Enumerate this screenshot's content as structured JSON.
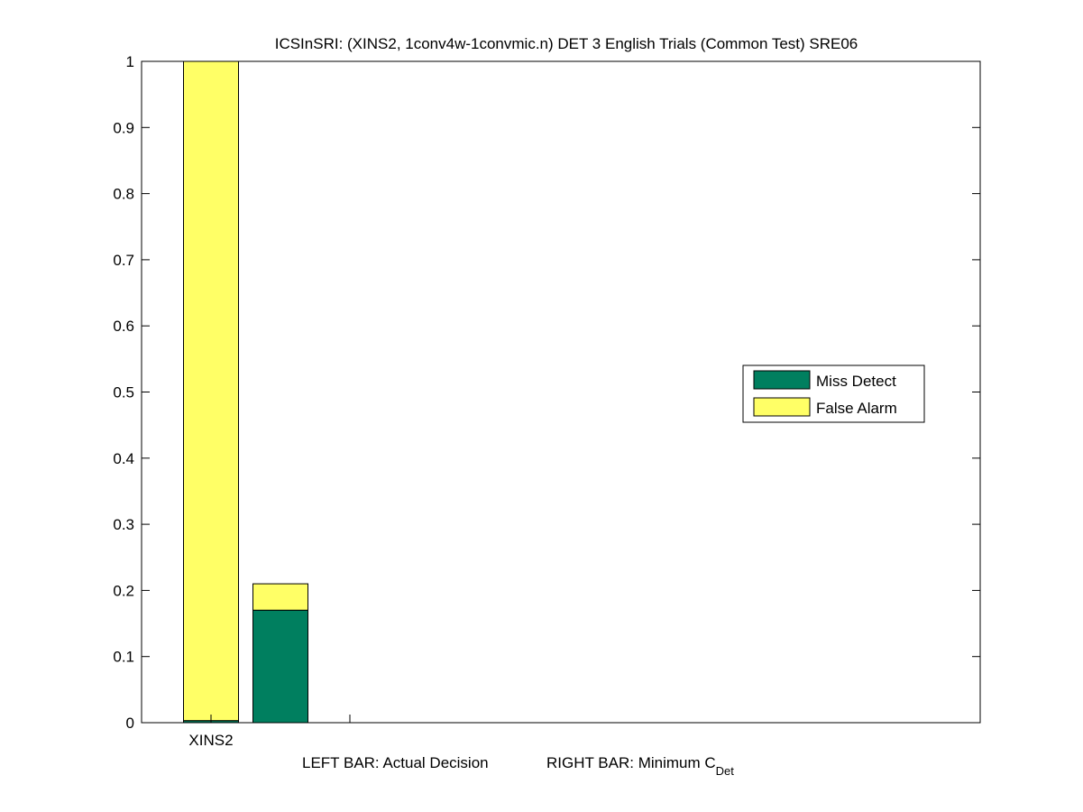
{
  "chart_data": {
    "type": "bar",
    "stacked": true,
    "title": "ICSInSRI: (XINS2, 1conv4w-1convmic.n) DET 3 English Trials (Common Test) SRE06",
    "categories": [
      "XINS2"
    ],
    "bars": [
      {
        "role": "left",
        "category": "XINS2",
        "miss_detect": 0.003,
        "false_alarm": 0.997
      },
      {
        "role": "right",
        "category": "XINS2",
        "miss_detect": 0.17,
        "false_alarm": 0.04
      }
    ],
    "series": [
      {
        "name": "Miss Detect",
        "color": "#007f5f"
      },
      {
        "name": "False Alarm",
        "color": "#ffff66"
      }
    ],
    "ylim": [
      0,
      1
    ],
    "yticks": [
      "0",
      "0.1",
      "0.2",
      "0.3",
      "0.4",
      "0.5",
      "0.6",
      "0.7",
      "0.8",
      "0.9",
      "1"
    ],
    "xlabel_left": "LEFT BAR: Actual Decision",
    "xlabel_right": "RIGHT BAR: Minimum C",
    "xlabel_right_sub": "Det",
    "legend_position": "right",
    "grid": false
  }
}
